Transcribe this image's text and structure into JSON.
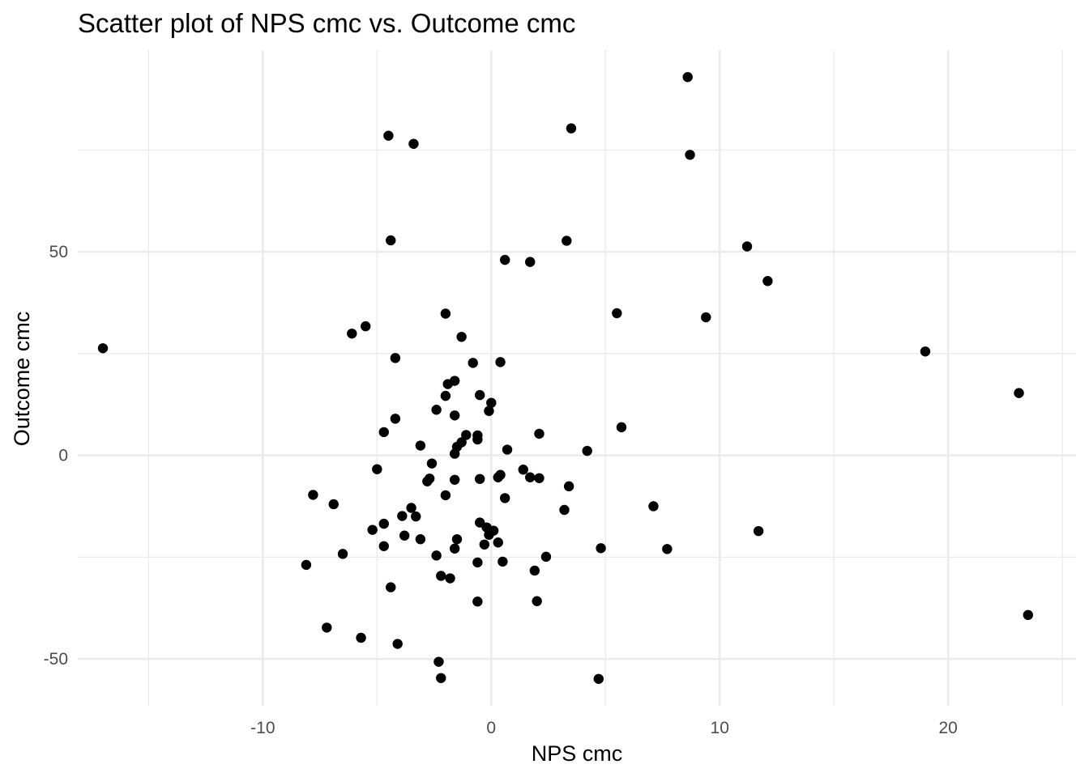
{
  "chart_data": {
    "type": "scatter",
    "title": "Scatter plot of NPS cmc vs. Outcome cmc",
    "xlabel": "NPS cmc",
    "ylabel": "Outcome cmc",
    "xlim": [
      -18.1,
      25.6
    ],
    "ylim": [
      -61.5,
      99.5
    ],
    "x_ticks": [
      -10,
      0,
      10,
      20
    ],
    "x_tick_labels": [
      "-10",
      "0",
      "10",
      "20"
    ],
    "y_ticks": [
      -50,
      0,
      50
    ],
    "y_tick_labels": [
      "-50",
      "0",
      "50"
    ],
    "x_minor_ticks": [
      -15,
      -5,
      5,
      15,
      25
    ],
    "y_minor_ticks": [
      -25,
      25,
      75
    ],
    "grid": true,
    "legend": "none",
    "point_color": "#000000",
    "points": [
      {
        "x": 8.6,
        "y": 92.9
      },
      {
        "x": -4.5,
        "y": 78.5
      },
      {
        "x": -3.4,
        "y": 76.5
      },
      {
        "x": 3.5,
        "y": 80.3
      },
      {
        "x": 8.7,
        "y": 73.8
      },
      {
        "x": -4.4,
        "y": 52.8
      },
      {
        "x": 3.3,
        "y": 52.7
      },
      {
        "x": 11.2,
        "y": 51.3
      },
      {
        "x": 0.6,
        "y": 48.0
      },
      {
        "x": 1.7,
        "y": 47.5
      },
      {
        "x": 12.1,
        "y": 42.8
      },
      {
        "x": -2.0,
        "y": 34.8
      },
      {
        "x": 5.5,
        "y": 34.9
      },
      {
        "x": 9.4,
        "y": 33.9
      },
      {
        "x": -5.5,
        "y": 31.7
      },
      {
        "x": -6.1,
        "y": 29.9
      },
      {
        "x": -1.3,
        "y": 29.1
      },
      {
        "x": -17.0,
        "y": 26.3
      },
      {
        "x": 19.0,
        "y": 25.5
      },
      {
        "x": -4.2,
        "y": 23.9
      },
      {
        "x": -0.8,
        "y": 22.7
      },
      {
        "x": 0.4,
        "y": 22.9
      },
      {
        "x": -1.6,
        "y": 18.3
      },
      {
        "x": -1.9,
        "y": 17.5
      },
      {
        "x": 23.1,
        "y": 15.3
      },
      {
        "x": -2.0,
        "y": 14.6
      },
      {
        "x": -0.5,
        "y": 14.8
      },
      {
        "x": 0.0,
        "y": 12.9
      },
      {
        "x": -2.4,
        "y": 11.2
      },
      {
        "x": -0.1,
        "y": 10.9
      },
      {
        "x": -1.6,
        "y": 9.8
      },
      {
        "x": -4.2,
        "y": 9.0
      },
      {
        "x": 5.7,
        "y": 6.9
      },
      {
        "x": -4.7,
        "y": 5.7
      },
      {
        "x": -1.1,
        "y": 5.0
      },
      {
        "x": -0.6,
        "y": 4.9
      },
      {
        "x": 2.1,
        "y": 5.3
      },
      {
        "x": -0.6,
        "y": 3.9
      },
      {
        "x": -1.3,
        "y": 3.2
      },
      {
        "x": -1.5,
        "y": 2.1
      },
      {
        "x": -3.1,
        "y": 2.4
      },
      {
        "x": 0.7,
        "y": 1.4
      },
      {
        "x": 4.2,
        "y": 1.1
      },
      {
        "x": -1.6,
        "y": 0.4
      },
      {
        "x": -2.6,
        "y": -2.0
      },
      {
        "x": -5.0,
        "y": -3.4
      },
      {
        "x": 1.4,
        "y": -3.5
      },
      {
        "x": 0.4,
        "y": -4.8
      },
      {
        "x": 0.3,
        "y": -5.4
      },
      {
        "x": 1.7,
        "y": -5.4
      },
      {
        "x": 2.1,
        "y": -5.6
      },
      {
        "x": -2.7,
        "y": -5.7
      },
      {
        "x": -2.8,
        "y": -6.4
      },
      {
        "x": -1.6,
        "y": -6.0
      },
      {
        "x": -0.5,
        "y": -5.8
      },
      {
        "x": 3.4,
        "y": -7.6
      },
      {
        "x": -7.8,
        "y": -9.7
      },
      {
        "x": -2.0,
        "y": -9.8
      },
      {
        "x": 0.6,
        "y": -10.5
      },
      {
        "x": -6.9,
        "y": -12.0
      },
      {
        "x": 7.1,
        "y": -12.5
      },
      {
        "x": -3.5,
        "y": -12.9
      },
      {
        "x": 3.2,
        "y": -13.4
      },
      {
        "x": -3.9,
        "y": -14.9
      },
      {
        "x": -3.3,
        "y": -15.0
      },
      {
        "x": -0.5,
        "y": -16.5
      },
      {
        "x": -4.7,
        "y": -16.8
      },
      {
        "x": -0.2,
        "y": -17.7
      },
      {
        "x": -5.2,
        "y": -18.3
      },
      {
        "x": 0.1,
        "y": -18.5
      },
      {
        "x": 11.7,
        "y": -18.6
      },
      {
        "x": -0.1,
        "y": -19.5
      },
      {
        "x": -3.8,
        "y": -19.7
      },
      {
        "x": -1.5,
        "y": -20.6
      },
      {
        "x": -3.1,
        "y": -20.6
      },
      {
        "x": 0.3,
        "y": -21.4
      },
      {
        "x": -0.3,
        "y": -21.9
      },
      {
        "x": -4.7,
        "y": -22.3
      },
      {
        "x": -1.6,
        "y": -22.9
      },
      {
        "x": 4.8,
        "y": -22.8
      },
      {
        "x": 7.7,
        "y": -23.0
      },
      {
        "x": -6.5,
        "y": -24.2
      },
      {
        "x": -2.4,
        "y": -24.6
      },
      {
        "x": 2.4,
        "y": -24.9
      },
      {
        "x": -0.6,
        "y": -26.3
      },
      {
        "x": 0.5,
        "y": -26.1
      },
      {
        "x": -8.1,
        "y": -26.9
      },
      {
        "x": 1.9,
        "y": -28.3
      },
      {
        "x": -2.2,
        "y": -29.6
      },
      {
        "x": -1.8,
        "y": -30.2
      },
      {
        "x": -4.4,
        "y": -32.4
      },
      {
        "x": -0.6,
        "y": -35.9
      },
      {
        "x": 2.0,
        "y": -35.8
      },
      {
        "x": 23.5,
        "y": -39.2
      },
      {
        "x": -7.2,
        "y": -42.3
      },
      {
        "x": -5.7,
        "y": -44.8
      },
      {
        "x": -4.1,
        "y": -46.3
      },
      {
        "x": -2.3,
        "y": -50.7
      },
      {
        "x": -2.2,
        "y": -54.7
      },
      {
        "x": 4.7,
        "y": -54.9
      }
    ]
  }
}
